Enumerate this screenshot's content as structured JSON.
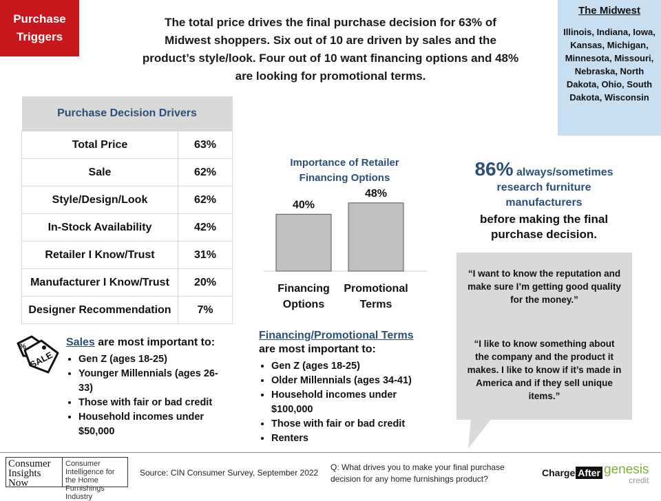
{
  "tag": {
    "line1": "Purchase",
    "line2": "Triggers"
  },
  "headline": "The total price drives the final purchase decision for 63% of Midwest shoppers.  Six out of 10 are driven by sales and the product’s style/look. Four out of 10 want financing options and 48% are looking for promotional  terms.",
  "region": {
    "title": "The Midwest",
    "states": "Illinois, Indiana, Iowa, Kansas, Michigan, Minnesota, Missouri, Nebraska, North Dakota, Ohio, South Dakota, Wisconsin"
  },
  "drivers": {
    "header": "Purchase Decision Drivers",
    "rows": [
      {
        "label": "Total Price",
        "value": "63%"
      },
      {
        "label": "Sale",
        "value": "62%"
      },
      {
        "label": "Style/Design/Look",
        "value": "62%"
      },
      {
        "label": "In-Stock Availability",
        "value": "42%"
      },
      {
        "label": "Retailer I Know/Trust",
        "value": "31%"
      },
      {
        "label": "Manufacturer I Know/Trust",
        "value": "20%"
      },
      {
        "label": "Designer Recommendation",
        "value": "7%"
      }
    ]
  },
  "chart_data": {
    "type": "bar",
    "title": "Importance of Retailer Financing Options",
    "categories": [
      [
        "Financing",
        "Options"
      ],
      [
        "Promotional",
        "Terms"
      ]
    ],
    "values": [
      40,
      48
    ],
    "value_labels": [
      "40%",
      "48%"
    ],
    "ylim": [
      0,
      60
    ],
    "bar_color": "#c0c0c0",
    "grid": false
  },
  "research": {
    "pct": "86%",
    "blue1": "always/sometimes",
    "blue2": "research furniture manufacturers",
    "rest": "before making the final purchase decision."
  },
  "quotes": [
    "“I want to know the reputation and make sure I’m getting good quality for the money.”",
    "“I like to know something about the company and the product it makes. I like to know if it’s made in America and if they sell unique items.”"
  ],
  "sales": {
    "heading_u": "Sales",
    "heading_rest": " are most important to:",
    "items": [
      "Gen Z (ages 18-25)",
      "Younger Millennials (ages 26-33)",
      "Those with fair or bad credit",
      "Household incomes under $50,000"
    ]
  },
  "fpt": {
    "heading_u": "Financing/Promotional Terms",
    "heading_rest": "are most important to:",
    "items": [
      "Gen Z (ages 18-25)",
      "Older Millennials  (ages 34-41)",
      "Household incomes under $100,000",
      "Those with fair or bad credit",
      "Renters"
    ]
  },
  "footer": {
    "logo_left": "Consumer Insights Now",
    "logo_right": "Consumer Intelligence for the Home Furnishings Industry",
    "source": "Source: CIN Consumer Survey, September  2022",
    "question": "Q: What drives you to make your final purchase decision for any home furnishings product?",
    "chargeafter_1": "Charge",
    "chargeafter_2": "After",
    "genesis_1": "genesis",
    "genesis_2": "credit"
  },
  "colors": {
    "tag_red": "#c8161d",
    "region_blue": "#c7dff1",
    "accent_navy": "#2b4f78",
    "quote_gray": "#d9d9d9"
  },
  "icons": {
    "sale": "sale-tag-icon"
  }
}
